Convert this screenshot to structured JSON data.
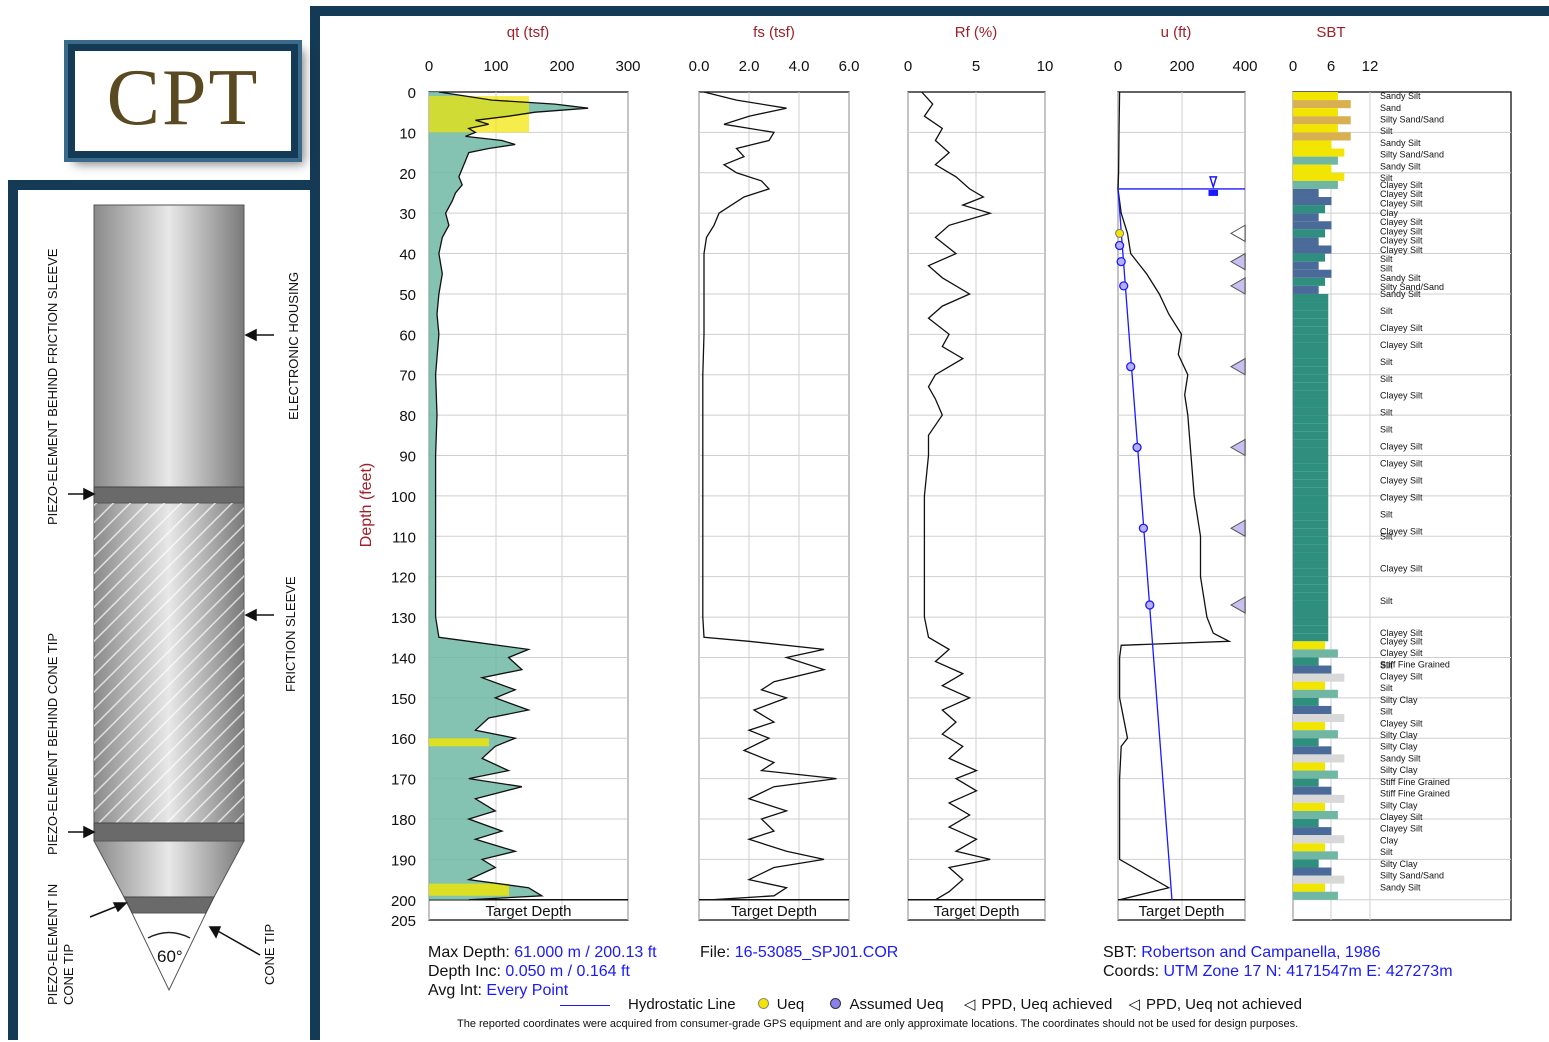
{
  "logo": "CPT",
  "diagram_labels": {
    "piezo_friction": "PIEZO-ELEMENT BEHIND FRICTION SLEEVE",
    "electronic_housing": "ELECTRONIC HOUSING",
    "piezo_cone": "PIEZO-ELEMENT BEHIND CONE TIP",
    "friction_sleeve": "FRICTION SLEEVE",
    "piezo_in_cone_1": "PIEZO-ELEMENT IN",
    "piezo_in_cone_2": "CONE TIP",
    "cone_tip": "CONE TIP",
    "angle": "60°"
  },
  "y_axis": {
    "label": "Depth (feet)",
    "ticks": [
      "0",
      "10",
      "20",
      "30",
      "40",
      "50",
      "60",
      "70",
      "80",
      "90",
      "100",
      "110",
      "120",
      "130",
      "140",
      "150",
      "160",
      "170",
      "180",
      "190",
      "200",
      "205"
    ]
  },
  "panels": [
    {
      "title": "qt (tsf)",
      "ticks": [
        "0",
        "100",
        "200",
        "300"
      ]
    },
    {
      "title": "fs (tsf)",
      "ticks": [
        "0.0",
        "2.0",
        "4.0",
        "6.0"
      ]
    },
    {
      "title": "Rf (%)",
      "ticks": [
        "0",
        "5",
        "10"
      ]
    },
    {
      "title": "u (ft)",
      "ticks": [
        "0",
        "200",
        "400"
      ]
    },
    {
      "title": "SBT",
      "ticks": [
        "0",
        "6",
        "12"
      ]
    }
  ],
  "target_depth_label": "Target Depth",
  "sbt_labels": [
    "Sandy Silt",
    "Sand",
    "Silty Sand/Sand",
    "Silt",
    "Sandy Silt",
    "Silty Sand/Sand",
    "Sandy Silt",
    "Silt",
    "Clayey Silt",
    "Clayey Silt",
    "Clayey Silt",
    "Clay",
    "Clayey Silt",
    "Clayey Silt",
    "Clayey Silt",
    "Clayey Silt",
    "Silt",
    "Silt",
    "Sandy Silt",
    "Silty Sand/Sand",
    "Sandy Silt",
    "Silt",
    "Clayey Silt",
    "Clayey Silt",
    "Silt",
    "Silt",
    "Clayey Silt",
    "Silt",
    "Silt",
    "Clayey Silt",
    "Clayey Silt",
    "Clayey Silt",
    "Clayey Silt",
    "Silt",
    "Clayey Silt",
    "Silt",
    "Clayey Silt",
    "Silt",
    "Clayey Silt",
    "Silt",
    "Clayey Silt",
    "Clayey Silt",
    "Stiff Fine Grained",
    "Clayey Silt",
    "Silt",
    "Silty Clay",
    "Silt",
    "Clayey Silt",
    "Silty Clay",
    "Silty Clay",
    "Sandy Silt",
    "Silty Clay",
    "Stiff Fine Grained",
    "Stiff Fine Grained",
    "Silty Clay",
    "Clayey Silt",
    "Clayey Silt",
    "Clay",
    "Silt",
    "Silty Clay",
    "Silty Sand/Sand",
    "Sandy Silt"
  ],
  "info": {
    "max_depth_label": "Max Depth:",
    "max_depth": "61.000 m / 200.13 ft",
    "depth_inc_label": "Depth Inc:",
    "depth_inc": "0.050 m / 0.164 ft",
    "avg_int_label": "Avg Int:",
    "avg_int": "Every Point",
    "file_label": "File:",
    "file": "16-53085_SPJ01.COR",
    "sbt_label": "SBT:",
    "sbt": "Robertson and Campanella, 1986",
    "coords_label": "Coords:",
    "coords": "UTM Zone 17 N: 4171547m E: 427273m"
  },
  "legend": {
    "hydro": "Hydrostatic Line",
    "ueq": "Ueq",
    "assumed": "Assumed Ueq",
    "ppd_achieved": "PPD, Ueq achieved",
    "ppd_not": "PPD, Ueq not achieved"
  },
  "disclaimer": "The reported coordinates were acquired from consumer-grade GPS equipment and are only approximate locations. The coordinates should not be used for design purposes.",
  "colors": {
    "frame": "#153a55",
    "title_red": "#a0202a",
    "blue": "#1a1aff",
    "sbt_green": "#2f8f7f",
    "yellow": "#f2e600",
    "tan": "#d8b050"
  },
  "chart_data": {
    "type": "line",
    "y_range_ft": [
      0,
      205
    ],
    "water_table_ft": 24,
    "target_depth_ft": 200,
    "series": [
      {
        "name": "qt (tsf)",
        "xlim": [
          0,
          300
        ],
        "points": [
          [
            0,
            15
          ],
          [
            2,
            95
          ],
          [
            3,
            190
          ],
          [
            4,
            240
          ],
          [
            5,
            160
          ],
          [
            6,
            120
          ],
          [
            7,
            70
          ],
          [
            8,
            90
          ],
          [
            9,
            60
          ],
          [
            10,
            70
          ],
          [
            11,
            55
          ],
          [
            12,
            110
          ],
          [
            13,
            130
          ],
          [
            14,
            90
          ],
          [
            15,
            60
          ],
          [
            17,
            55
          ],
          [
            19,
            50
          ],
          [
            21,
            45
          ],
          [
            23,
            50
          ],
          [
            25,
            40
          ],
          [
            27,
            35
          ],
          [
            30,
            25
          ],
          [
            33,
            30
          ],
          [
            36,
            20
          ],
          [
            40,
            15
          ],
          [
            45,
            20
          ],
          [
            50,
            15
          ],
          [
            55,
            12
          ],
          [
            60,
            15
          ],
          [
            70,
            10
          ],
          [
            80,
            12
          ],
          [
            90,
            10
          ],
          [
            100,
            10
          ],
          [
            110,
            10
          ],
          [
            120,
            10
          ],
          [
            130,
            10
          ],
          [
            135,
            15
          ],
          [
            136,
            60
          ],
          [
            138,
            150
          ],
          [
            140,
            120
          ],
          [
            143,
            140
          ],
          [
            145,
            80
          ],
          [
            148,
            130
          ],
          [
            150,
            100
          ],
          [
            153,
            150
          ],
          [
            155,
            90
          ],
          [
            158,
            70
          ],
          [
            160,
            130
          ],
          [
            162,
            100
          ],
          [
            165,
            80
          ],
          [
            168,
            120
          ],
          [
            170,
            60
          ],
          [
            172,
            140
          ],
          [
            175,
            70
          ],
          [
            178,
            100
          ],
          [
            180,
            60
          ],
          [
            183,
            110
          ],
          [
            185,
            70
          ],
          [
            188,
            130
          ],
          [
            190,
            80
          ],
          [
            192,
            100
          ],
          [
            195,
            60
          ],
          [
            197,
            150
          ],
          [
            199,
            170
          ],
          [
            200,
            60
          ]
        ]
      },
      {
        "name": "fs (tsf)",
        "xlim": [
          0,
          6
        ],
        "points": [
          [
            0,
            0.2
          ],
          [
            2,
            1.5
          ],
          [
            4,
            3.5
          ],
          [
            6,
            2.0
          ],
          [
            8,
            1.0
          ],
          [
            10,
            3.0
          ],
          [
            12,
            2.8
          ],
          [
            14,
            1.5
          ],
          [
            16,
            1.8
          ],
          [
            18,
            1.0
          ],
          [
            20,
            1.5
          ],
          [
            22,
            2.5
          ],
          [
            24,
            2.8
          ],
          [
            26,
            1.8
          ],
          [
            28,
            1.3
          ],
          [
            30,
            0.8
          ],
          [
            33,
            0.6
          ],
          [
            36,
            0.3
          ],
          [
            40,
            0.2
          ],
          [
            50,
            0.2
          ],
          [
            60,
            0.2
          ],
          [
            70,
            0.15
          ],
          [
            80,
            0.15
          ],
          [
            90,
            0.15
          ],
          [
            100,
            0.15
          ],
          [
            110,
            0.15
          ],
          [
            120,
            0.15
          ],
          [
            130,
            0.15
          ],
          [
            135,
            0.2
          ],
          [
            136,
            2.0
          ],
          [
            138,
            5.0
          ],
          [
            140,
            3.5
          ],
          [
            143,
            5.0
          ],
          [
            146,
            3.0
          ],
          [
            148,
            2.5
          ],
          [
            150,
            3.5
          ],
          [
            153,
            2.2
          ],
          [
            156,
            3.0
          ],
          [
            158,
            2.0
          ],
          [
            160,
            2.8
          ],
          [
            163,
            1.8
          ],
          [
            166,
            3.0
          ],
          [
            168,
            2.5
          ],
          [
            170,
            5.5
          ],
          [
            172,
            3.0
          ],
          [
            175,
            2.0
          ],
          [
            178,
            3.5
          ],
          [
            180,
            2.5
          ],
          [
            183,
            3.0
          ],
          [
            185,
            2.0
          ],
          [
            188,
            3.5
          ],
          [
            190,
            5.0
          ],
          [
            192,
            3.0
          ],
          [
            195,
            2.0
          ],
          [
            197,
            3.5
          ],
          [
            199,
            3.0
          ],
          [
            200,
            0.5
          ]
        ]
      },
      {
        "name": "Rf (%)",
        "xlim": [
          0,
          10
        ],
        "points": [
          [
            0,
            1.0
          ],
          [
            3,
            1.8
          ],
          [
            6,
            1.2
          ],
          [
            9,
            2.5
          ],
          [
            12,
            2.0
          ],
          [
            15,
            3.0
          ],
          [
            18,
            2.0
          ],
          [
            21,
            3.5
          ],
          [
            24,
            4.5
          ],
          [
            26,
            5.5
          ],
          [
            28,
            4.0
          ],
          [
            30,
            6.0
          ],
          [
            33,
            3.0
          ],
          [
            36,
            2.0
          ],
          [
            40,
            3.5
          ],
          [
            43,
            1.5
          ],
          [
            46,
            2.5
          ],
          [
            50,
            4.5
          ],
          [
            53,
            2.5
          ],
          [
            56,
            1.5
          ],
          [
            60,
            3.0
          ],
          [
            63,
            2.5
          ],
          [
            66,
            4.0
          ],
          [
            70,
            2.0
          ],
          [
            73,
            1.5
          ],
          [
            76,
            2.0
          ],
          [
            80,
            2.5
          ],
          [
            85,
            1.5
          ],
          [
            90,
            1.5
          ],
          [
            100,
            1.2
          ],
          [
            110,
            1.2
          ],
          [
            120,
            1.2
          ],
          [
            130,
            1.2
          ],
          [
            135,
            1.5
          ],
          [
            138,
            3.0
          ],
          [
            141,
            2.0
          ],
          [
            144,
            4.0
          ],
          [
            147,
            2.5
          ],
          [
            150,
            4.5
          ],
          [
            153,
            2.5
          ],
          [
            156,
            3.5
          ],
          [
            159,
            2.5
          ],
          [
            162,
            4.0
          ],
          [
            165,
            3.0
          ],
          [
            168,
            5.0
          ],
          [
            170,
            3.5
          ],
          [
            173,
            5.0
          ],
          [
            176,
            3.0
          ],
          [
            179,
            4.5
          ],
          [
            182,
            3.0
          ],
          [
            185,
            5.0
          ],
          [
            188,
            3.5
          ],
          [
            190,
            6.0
          ],
          [
            192,
            3.0
          ],
          [
            195,
            4.0
          ],
          [
            198,
            3.0
          ],
          [
            200,
            2.0
          ]
        ]
      },
      {
        "name": "u (ft)",
        "xlim": [
          0,
          400
        ],
        "points": [
          [
            0,
            5
          ],
          [
            10,
            3
          ],
          [
            20,
            2
          ],
          [
            24,
            0
          ],
          [
            30,
            10
          ],
          [
            35,
            30
          ],
          [
            40,
            40
          ],
          [
            45,
            90
          ],
          [
            50,
            130
          ],
          [
            55,
            160
          ],
          [
            60,
            200
          ],
          [
            65,
            190
          ],
          [
            70,
            220
          ],
          [
            75,
            210
          ],
          [
            80,
            220
          ],
          [
            90,
            230
          ],
          [
            100,
            240
          ],
          [
            110,
            260
          ],
          [
            120,
            260
          ],
          [
            130,
            280
          ],
          [
            134,
            300
          ],
          [
            136,
            350
          ],
          [
            137,
            10
          ],
          [
            140,
            5
          ],
          [
            150,
            5
          ],
          [
            160,
            30
          ],
          [
            162,
            10
          ],
          [
            170,
            5
          ],
          [
            180,
            5
          ],
          [
            190,
            5
          ],
          [
            197,
            160
          ],
          [
            200,
            5
          ]
        ]
      }
    ],
    "hydrostatic_line": {
      "points": [
        [
          24,
          0
        ],
        [
          200,
          170
        ]
      ]
    },
    "assumed_ueq_points": [
      [
        38,
        5
      ],
      [
        42,
        10
      ],
      [
        48,
        18
      ],
      [
        68,
        40
      ],
      [
        88,
        60
      ],
      [
        108,
        80
      ],
      [
        127,
        100
      ]
    ],
    "ueq_points": [
      [
        35,
        5
      ]
    ],
    "ppd_not_achieved_depths": [
      42,
      48,
      68,
      88,
      108,
      127
    ],
    "ppd_achieved_depths": [
      35
    ],
    "sbt_xlim": [
      0,
      12
    ]
  }
}
